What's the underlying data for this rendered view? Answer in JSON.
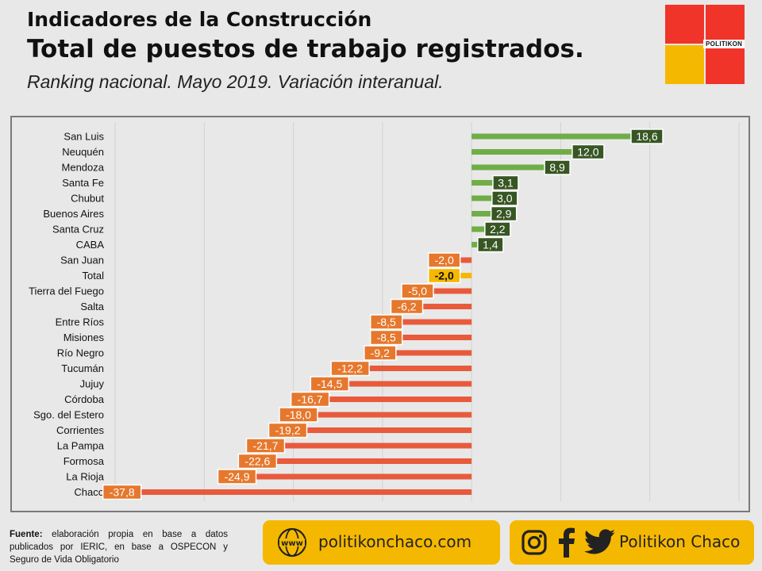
{
  "header": {
    "line1": "Indicadores de la Construcción",
    "line2": "Total de puestos de trabajo registrados.",
    "line3": "Ranking nacional. Mayo 2019. Variación interanual."
  },
  "logo": {
    "text": "POLITIKON"
  },
  "colors": {
    "positive_bar": "#70ad47",
    "positive_label_bg": "#375623",
    "negative_bar": "#e85a3c",
    "negative_label_bg": "#e6782d",
    "total_bar": "#f5b800",
    "total_label_bg": "#f5b800",
    "brand_yellow": "#f5b800",
    "brand_red": "#f0342a"
  },
  "chart_data": {
    "type": "bar",
    "orientation": "horizontal",
    "categories": [
      "San Luis",
      "Neuquén",
      "Mendoza",
      "Santa Fe",
      "Chubut",
      "Buenos Aires",
      "Santa Cruz",
      "CABA",
      "San Juan",
      "Total",
      "Tierra del Fuego",
      "Salta",
      "Entre Ríos",
      "Misiones",
      "Río Negro",
      "Tucumán",
      "Jujuy",
      "Córdoba",
      "Sgo. del Estero",
      "Corrientes",
      "La Pampa",
      "Formosa",
      "La Rioja",
      "Chaco"
    ],
    "values": [
      18.6,
      12.0,
      8.9,
      3.1,
      3.0,
      2.9,
      2.2,
      1.4,
      -2.0,
      -2.0,
      -5.0,
      -6.2,
      -8.5,
      -8.5,
      -9.2,
      -12.2,
      -14.5,
      -16.7,
      -18.0,
      -19.2,
      -21.7,
      -22.6,
      -24.9,
      -37.8
    ],
    "labels": [
      "18,6",
      "12,0",
      "8,9",
      "3,1",
      "3,0",
      "2,9",
      "2,2",
      "1,4",
      "-2,0",
      "-2,0",
      "-5,0",
      "-6,2",
      "-8,5",
      "-8,5",
      "-9,2",
      "-12,2",
      "-14,5",
      "-16,7",
      "-18,0",
      "-19,2",
      "-21,7",
      "-22,6",
      "-24,9",
      "-37,8"
    ],
    "highlight": "Total",
    "xlim": [
      -40,
      30
    ],
    "grid": true,
    "title": "",
    "xlabel": "",
    "ylabel": ""
  },
  "footer": {
    "source_label": "Fuente:",
    "source_text": "elaboración propia en base a datos publicados por IERIC, en base a OSPECON y Seguro de Vida Obligatorio",
    "website": "politikonchaco.com",
    "social_handle": "Politikon Chaco"
  },
  "icons": [
    "www-globe-icon",
    "instagram-icon",
    "facebook-icon",
    "twitter-icon"
  ]
}
